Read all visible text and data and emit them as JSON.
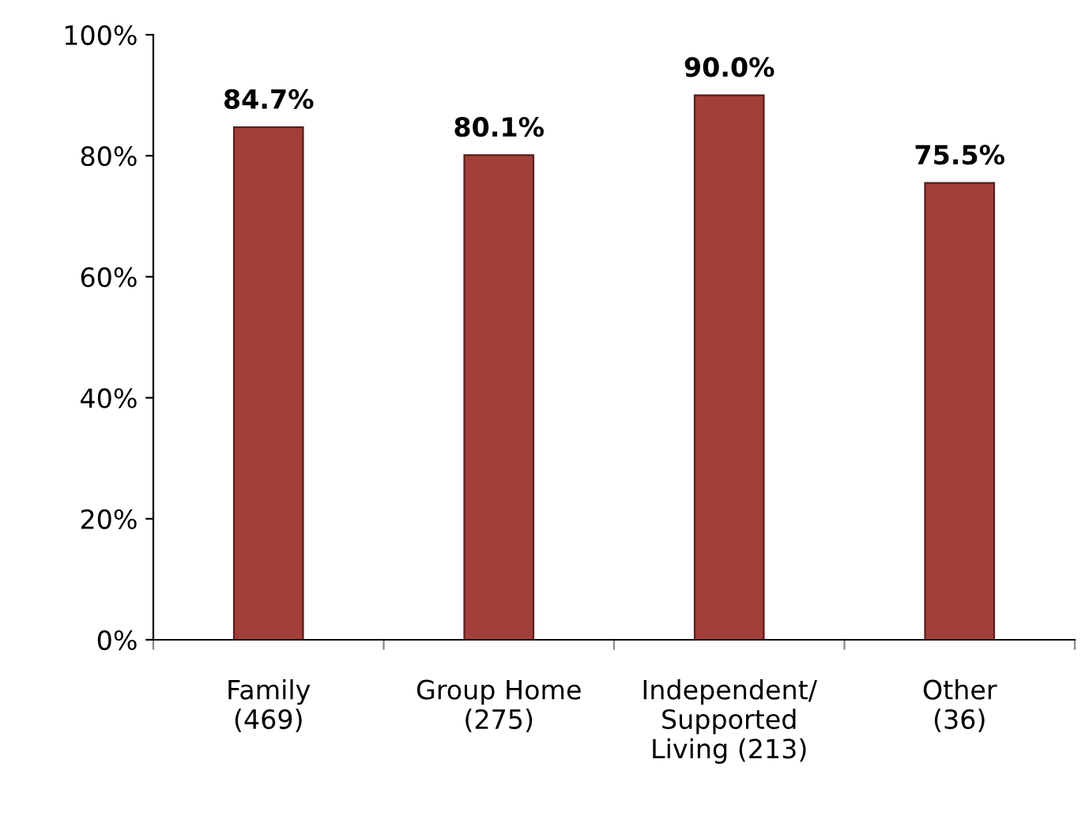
{
  "chart_data": {
    "type": "bar",
    "categories": [
      "Family\n(469)",
      "Group Home\n(275)",
      "Independent/\nSupported\nLiving (213)",
      "Other\n(36)"
    ],
    "values": [
      84.7,
      80.1,
      90.0,
      75.5
    ],
    "value_labels": [
      "84.7%",
      "80.1%",
      "90.0%",
      "75.5%"
    ],
    "color": "#a33f3b",
    "ylim": [
      0,
      100
    ],
    "yticks": [
      {
        "value": 0,
        "label": "0%"
      },
      {
        "value": 20,
        "label": "20%"
      },
      {
        "value": 40,
        "label": "40%"
      },
      {
        "value": 60,
        "label": "60%"
      },
      {
        "value": 80,
        "label": "80%"
      },
      {
        "value": 100,
        "label": "100%"
      }
    ],
    "grid": false
  }
}
